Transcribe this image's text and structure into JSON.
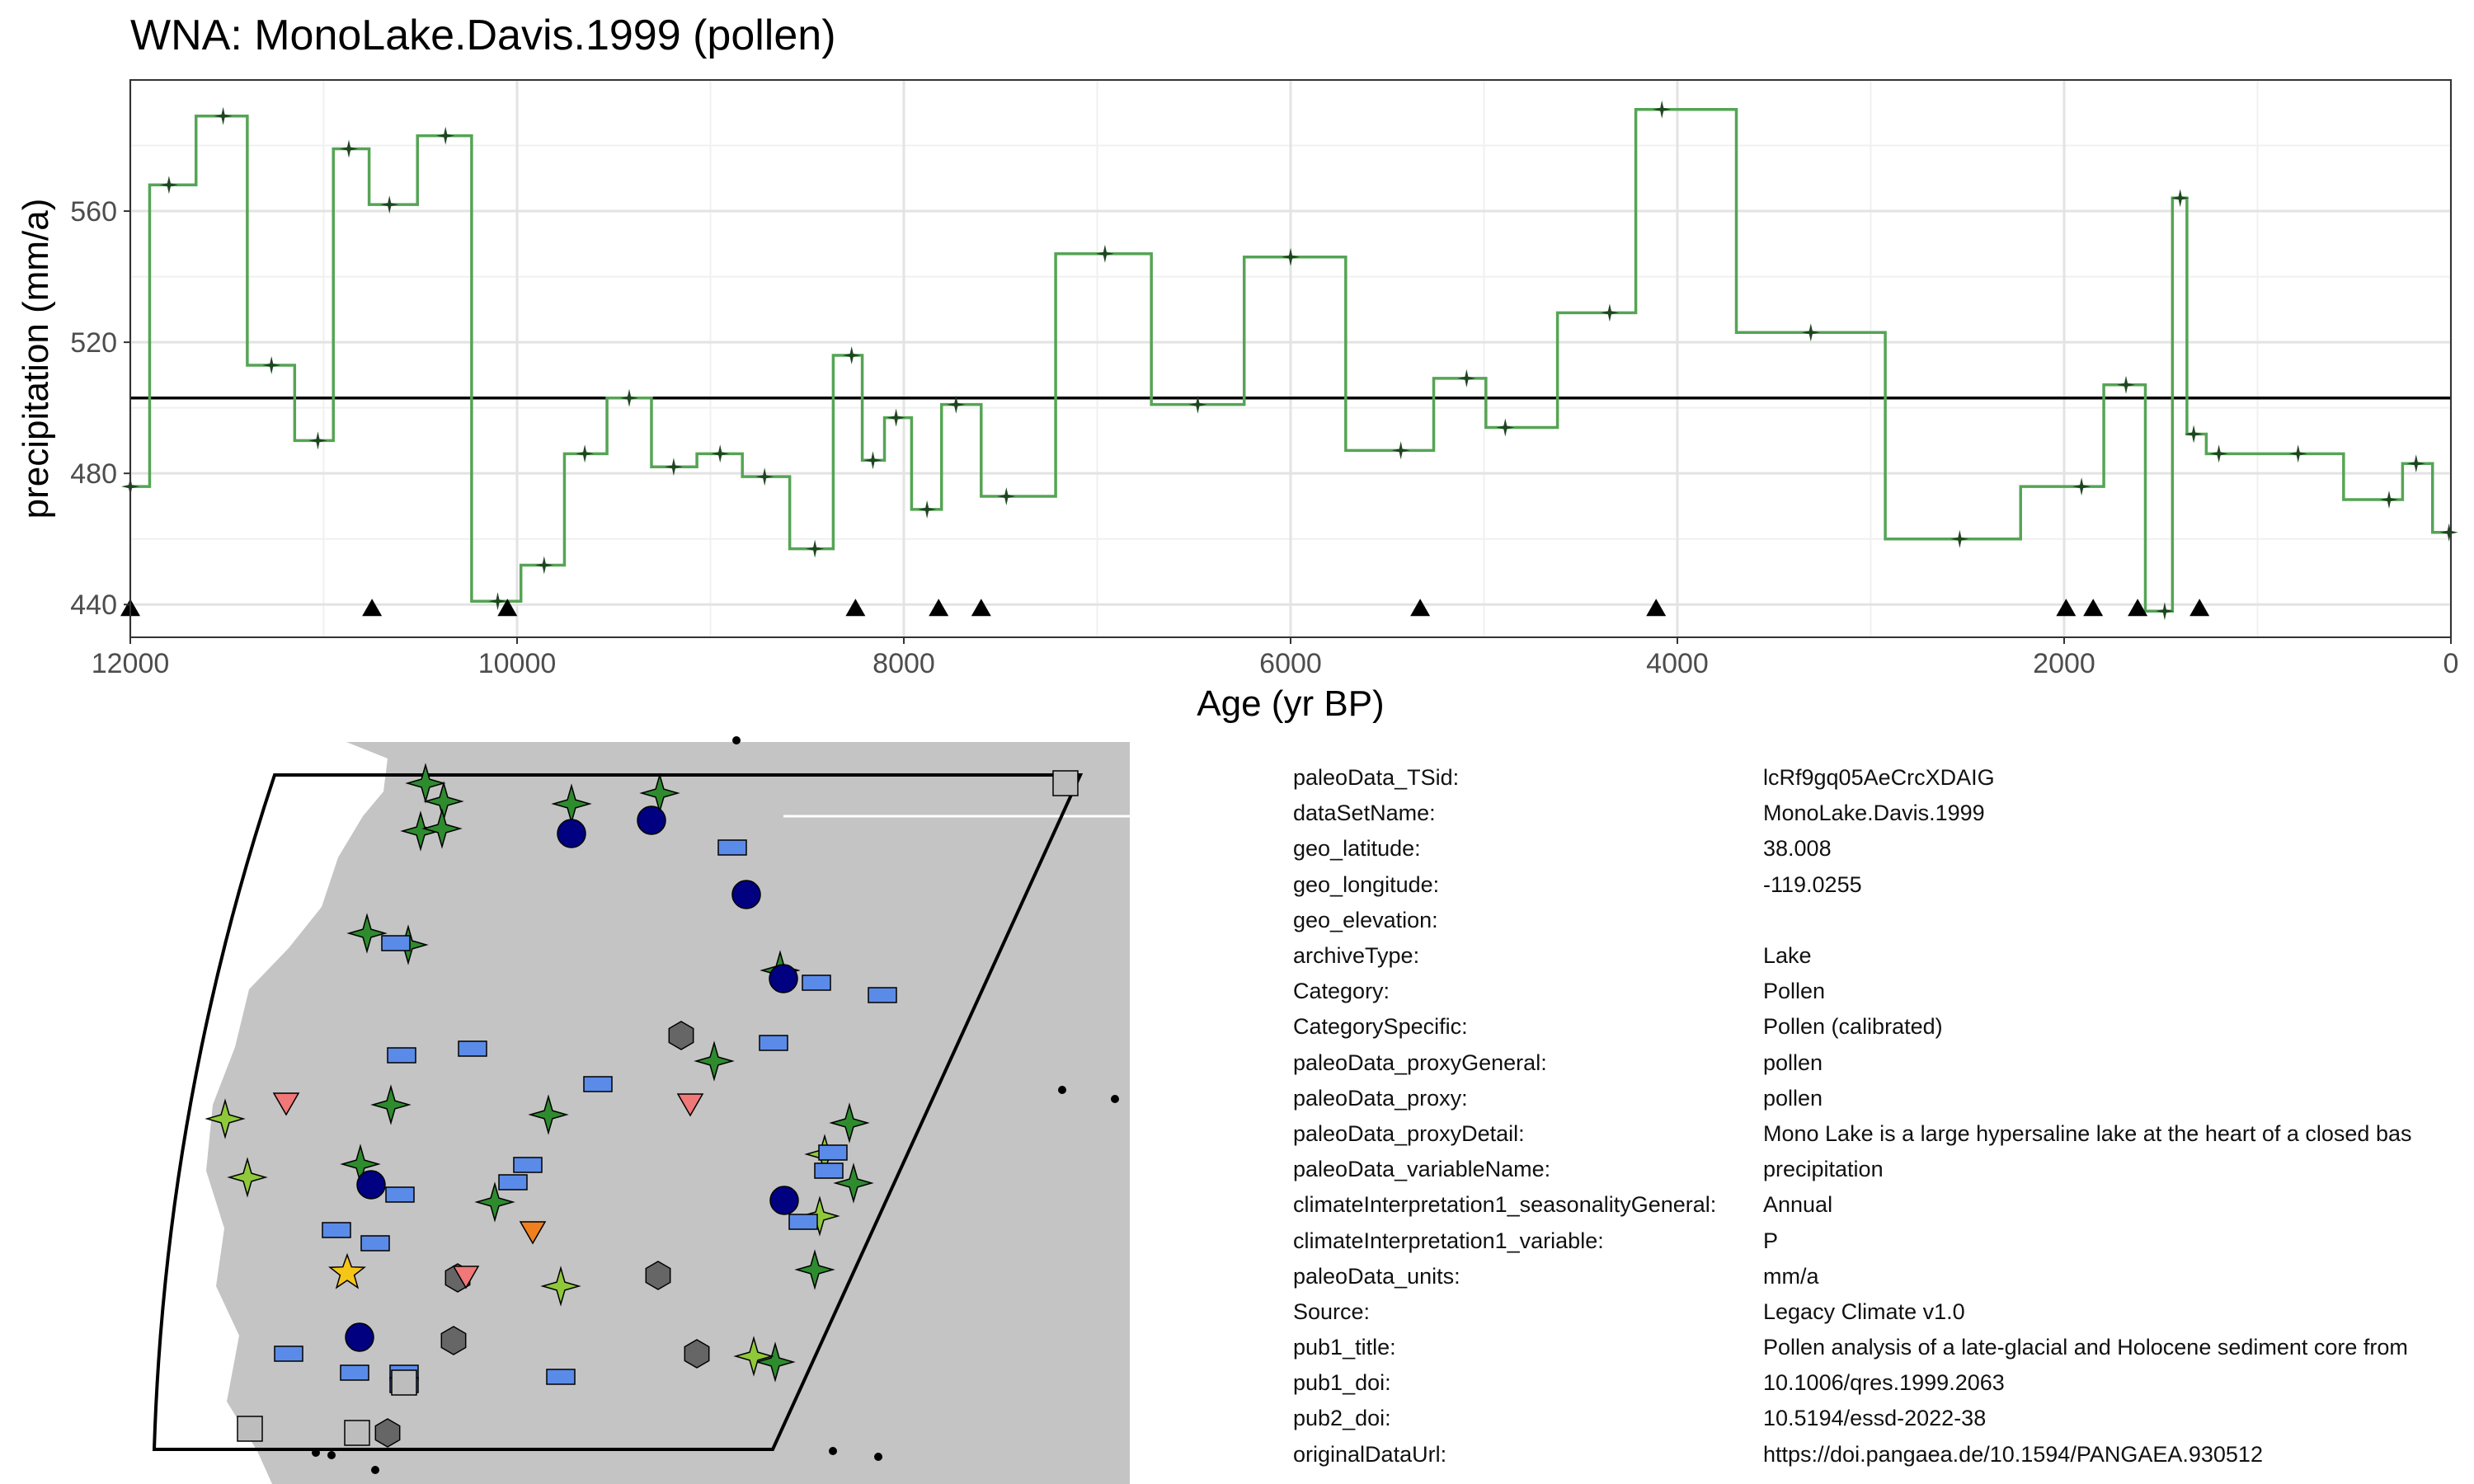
{
  "chart_data": {
    "type": "line",
    "title": "WNA: MonoLake.Davis.1999 (pollen)",
    "xlabel": "Age (yr BP)",
    "ylabel": "precipitation (mm/a)",
    "xlim": [
      12000,
      0
    ],
    "ylim": [
      430,
      600
    ],
    "x_reversed": true,
    "x_ticks": [
      12000,
      10000,
      8000,
      6000,
      4000,
      2000,
      0
    ],
    "x_tick_labels": [
      "12000",
      "10000",
      "8000",
      "6000",
      "4000",
      "2000",
      "0"
    ],
    "y_ticks": [
      440,
      480,
      520,
      560
    ],
    "y_tick_labels": [
      "440",
      "480",
      "520",
      "560"
    ],
    "grid": true,
    "series": [
      {
        "style": "step",
        "color": "#55a455",
        "marker_color": "#1e4620",
        "x": [
          12000,
          11800,
          11520,
          11270,
          11030,
          10870,
          10660,
          10370,
          10100,
          9860,
          9650,
          9420,
          9190,
          8950,
          8720,
          8460,
          8270,
          8160,
          8040,
          7880,
          7730,
          7470,
          6960,
          6480,
          6000,
          5430,
          5090,
          4890,
          4350,
          4080,
          3310,
          2540,
          1910,
          1680,
          1480,
          1400,
          1330,
          1200,
          790,
          320,
          180,
          10
        ],
        "y": [
          476,
          568,
          589,
          513,
          490,
          579,
          562,
          583,
          441,
          452,
          486,
          503,
          482,
          486,
          479,
          457,
          516,
          484,
          497,
          469,
          501,
          473,
          547,
          501,
          546,
          487,
          509,
          494,
          529,
          591,
          523,
          460,
          476,
          507,
          438,
          564,
          492,
          486,
          486,
          472,
          483,
          462
        ]
      },
      {
        "name": "",
        "style": "hline",
        "color": "#000000",
        "y": 503
      }
    ],
    "chron_markers": {
      "y": 440,
      "x": [
        12000,
        10750,
        10050,
        8250,
        7820,
        7600,
        5330,
        4110,
        1990,
        1850,
        1620,
        1300
      ]
    }
  },
  "map": {
    "land_color": "#c4c4c4",
    "region_outline_color": "#000000",
    "symbols": {
      "star_dark": "#2e8b2e",
      "star_light": "#8fc93a",
      "circle": "#000080",
      "rect": "#5b8be8",
      "hexagon": "#666666",
      "triangle_down": "#f07878",
      "triangle_orange": "#f07f1e",
      "square": "#bdbdbd",
      "highlight": "#f5c518"
    }
  },
  "metadata": [
    {
      "key": "paleoData_TSid:",
      "value": "lcRf9gq05AeCrcXDAIG"
    },
    {
      "key": "dataSetName:",
      "value": "MonoLake.Davis.1999"
    },
    {
      "key": "geo_latitude:",
      "value": "38.008"
    },
    {
      "key": "geo_longitude:",
      "value": "-119.0255"
    },
    {
      "key": "geo_elevation:",
      "value": ""
    },
    {
      "key": "archiveType:",
      "value": "Lake"
    },
    {
      "key": "Category:",
      "value": "Pollen"
    },
    {
      "key": "CategorySpecific:",
      "value": "Pollen (calibrated)"
    },
    {
      "key": "paleoData_proxyGeneral:",
      "value": "pollen"
    },
    {
      "key": "paleoData_proxy:",
      "value": "pollen"
    },
    {
      "key": "paleoData_proxyDetail:",
      "value": "Mono Lake is a large hypersaline lake at the heart of a closed bas"
    },
    {
      "key": "paleoData_variableName:",
      "value": "precipitation"
    },
    {
      "key": "climateInterpretation1_seasonalityGeneral:",
      "value": "Annual"
    },
    {
      "key": "climateInterpretation1_variable:",
      "value": "P"
    },
    {
      "key": "paleoData_units:",
      "value": "mm/a"
    },
    {
      "key": "Source:",
      "value": "Legacy Climate v1.0"
    },
    {
      "key": "pub1_title:",
      "value": "Pollen analysis of a late-glacial and Holocene sediment core from"
    },
    {
      "key": "pub1_doi:",
      "value": "10.1006/qres.1999.2063"
    },
    {
      "key": "pub2_doi:",
      "value": "10.5194/essd-2022-38"
    },
    {
      "key": "originalDataUrl:",
      "value": "https://doi.pangaea.de/10.1594/PANGAEA.930512"
    }
  ]
}
